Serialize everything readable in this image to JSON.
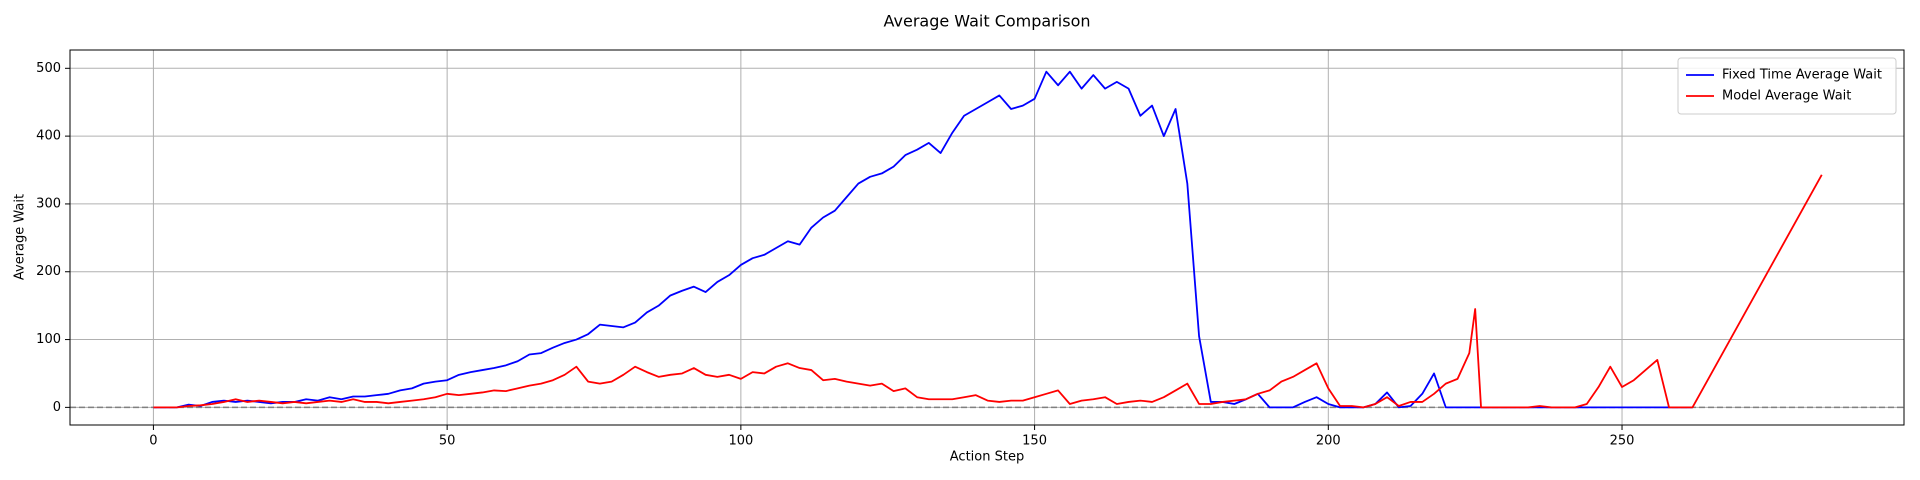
{
  "chart_data": {
    "type": "line",
    "title": "Average Wait Comparison",
    "xlabel": "Action Step",
    "ylabel": "Average Wait",
    "x": [
      0,
      2,
      4,
      6,
      8,
      10,
      12,
      14,
      16,
      18,
      20,
      22,
      24,
      26,
      28,
      30,
      32,
      34,
      36,
      38,
      40,
      42,
      44,
      46,
      48,
      50,
      52,
      54,
      56,
      58,
      60,
      62,
      64,
      66,
      68,
      70,
      72,
      74,
      76,
      78,
      80,
      82,
      84,
      86,
      88,
      90,
      92,
      94,
      96,
      98,
      100,
      102,
      104,
      106,
      108,
      110,
      112,
      114,
      116,
      118,
      120,
      122,
      124,
      126,
      128,
      130,
      132,
      134,
      136,
      138,
      140,
      142,
      144,
      146,
      148,
      150,
      152,
      154,
      156,
      158,
      160,
      162,
      164,
      166,
      168,
      170,
      172,
      174,
      176,
      178,
      180,
      182,
      184,
      186,
      188,
      190,
      192,
      194,
      196,
      198,
      200,
      202,
      204,
      206,
      208,
      210,
      212,
      214,
      216,
      218,
      220,
      222,
      224,
      225,
      226,
      228,
      230,
      232,
      234,
      236,
      238,
      240,
      242,
      244,
      246,
      248,
      250,
      252,
      254,
      256,
      258,
      260,
      262,
      284
    ],
    "series": [
      {
        "name": "Fixed Time Average Wait",
        "color": "#0000ff",
        "values": [
          0,
          0,
          0,
          4,
          2,
          8,
          10,
          8,
          10,
          8,
          6,
          8,
          8,
          12,
          10,
          15,
          12,
          16,
          16,
          18,
          20,
          25,
          28,
          35,
          38,
          40,
          48,
          52,
          55,
          58,
          62,
          68,
          78,
          80,
          88,
          95,
          100,
          108,
          122,
          120,
          118,
          125,
          140,
          150,
          165,
          172,
          178,
          170,
          185,
          195,
          210,
          220,
          225,
          235,
          245,
          240,
          265,
          280,
          290,
          310,
          330,
          340,
          345,
          355,
          372,
          380,
          390,
          375,
          405,
          430,
          440,
          450,
          460,
          440,
          445,
          455,
          495,
          475,
          495,
          470,
          490,
          470,
          480,
          470,
          430,
          445,
          400,
          440,
          330,
          105,
          8,
          8,
          5,
          12,
          20,
          0,
          0,
          0,
          8,
          15,
          5,
          0,
          0,
          0,
          5,
          22,
          0,
          2,
          20,
          50,
          0,
          0,
          0,
          0,
          0,
          0,
          0,
          0,
          0,
          0,
          0,
          0,
          0,
          0,
          0,
          0,
          0,
          0,
          0,
          0,
          0,
          0,
          0,
          null
        ]
      },
      {
        "name": "Model Average Wait",
        "color": "#ff0000",
        "values": [
          0,
          0,
          0,
          2,
          3,
          5,
          8,
          12,
          8,
          10,
          8,
          6,
          8,
          6,
          8,
          10,
          8,
          12,
          8,
          8,
          6,
          8,
          10,
          12,
          15,
          20,
          18,
          20,
          22,
          25,
          24,
          28,
          32,
          35,
          40,
          48,
          60,
          38,
          35,
          38,
          48,
          60,
          52,
          45,
          48,
          50,
          58,
          48,
          45,
          48,
          42,
          52,
          50,
          60,
          65,
          58,
          55,
          40,
          42,
          38,
          35,
          32,
          35,
          24,
          28,
          15,
          12,
          12,
          12,
          15,
          18,
          10,
          8,
          10,
          10,
          15,
          20,
          25,
          5,
          10,
          12,
          15,
          5,
          8,
          10,
          8,
          15,
          25,
          35,
          5,
          5,
          8,
          10,
          12,
          20,
          25,
          38,
          45,
          55,
          65,
          28,
          2,
          2,
          0,
          5,
          15,
          2,
          8,
          8,
          20,
          35,
          42,
          80,
          145,
          0,
          0,
          0,
          0,
          0,
          2,
          0,
          0,
          0,
          5,
          30,
          60,
          30,
          40,
          55,
          70,
          0,
          0,
          0,
          343
        ]
      }
    ],
    "xlim": [
      -14.2,
      298
    ],
    "xticks": [
      0,
      50,
      100,
      150,
      200,
      250
    ],
    "ylim": [
      -26,
      527
    ],
    "yticks": [
      0,
      100,
      200,
      300,
      400,
      500
    ],
    "hline": 0,
    "grid": true,
    "legend": "upper right"
  }
}
